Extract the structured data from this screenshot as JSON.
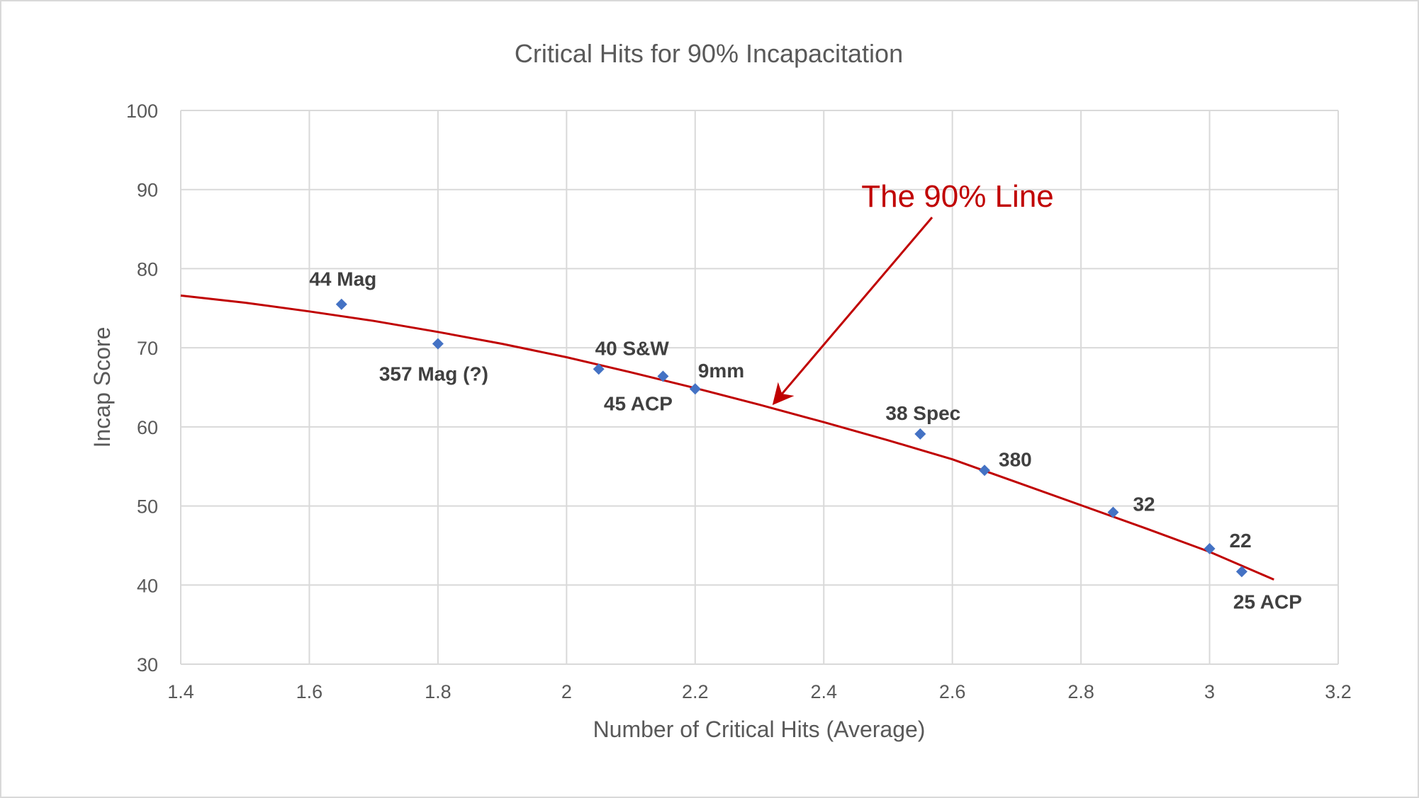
{
  "chart_data": {
    "type": "scatter",
    "title": "Critical Hits for 90% Incapacitation",
    "xlabel": "Number of Critical Hits (Average)",
    "ylabel": "Incap Score",
    "xlim": [
      1.4,
      3.2
    ],
    "ylim": [
      30,
      100
    ],
    "xticks": [
      1.4,
      1.6,
      1.8,
      2,
      2.2,
      2.4,
      2.6,
      2.8,
      3,
      3.2
    ],
    "xtick_labels": [
      "1.4",
      "1.6",
      "1.8",
      "2",
      "2.2",
      "2.4",
      "2.6",
      "2.8",
      "3",
      "3.2"
    ],
    "yticks": [
      30,
      40,
      50,
      60,
      70,
      80,
      90,
      100
    ],
    "ytick_labels": [
      "30",
      "40",
      "50",
      "60",
      "70",
      "80",
      "90",
      "100"
    ],
    "grid": true,
    "colors": {
      "points": "#4472c4",
      "trend_line": "#c00000",
      "grid": "#d9d9d9",
      "text": "#595959",
      "point_labels": "#404040"
    },
    "points": [
      {
        "label": "44 Mag",
        "x": 1.65,
        "y": 75.5
      },
      {
        "label": "357 Mag (?)",
        "x": 1.8,
        "y": 70.5
      },
      {
        "label": "40 S&W",
        "x": 2.05,
        "y": 67.3
      },
      {
        "label": "45 ACP",
        "x": 2.15,
        "y": 66.4
      },
      {
        "label": "9mm",
        "x": 2.2,
        "y": 64.8
      },
      {
        "label": "38 Spec",
        "x": 2.55,
        "y": 59.1
      },
      {
        "label": "380",
        "x": 2.65,
        "y": 54.5
      },
      {
        "label": "32",
        "x": 2.85,
        "y": 49.2
      },
      {
        "label": "22",
        "x": 3.0,
        "y": 44.6
      },
      {
        "label": "25 ACP",
        "x": 3.05,
        "y": 41.7
      }
    ],
    "trend_line": {
      "x": [
        1.4,
        1.5,
        1.6,
        1.7,
        1.8,
        1.9,
        2.0,
        2.1,
        2.2,
        2.3,
        2.4,
        2.5,
        2.6,
        2.7,
        2.8,
        2.9,
        3.0,
        3.1
      ],
      "y": [
        76.6,
        75.7,
        74.6,
        73.4,
        72.0,
        70.5,
        68.8,
        66.9,
        64.9,
        62.8,
        60.6,
        58.3,
        55.9,
        53.0,
        50.1,
        47.2,
        44.2,
        40.7
      ]
    },
    "annotation": {
      "text": "The 90% Line",
      "arrow_target": {
        "x": 2.32,
        "y": 62.8
      }
    }
  }
}
